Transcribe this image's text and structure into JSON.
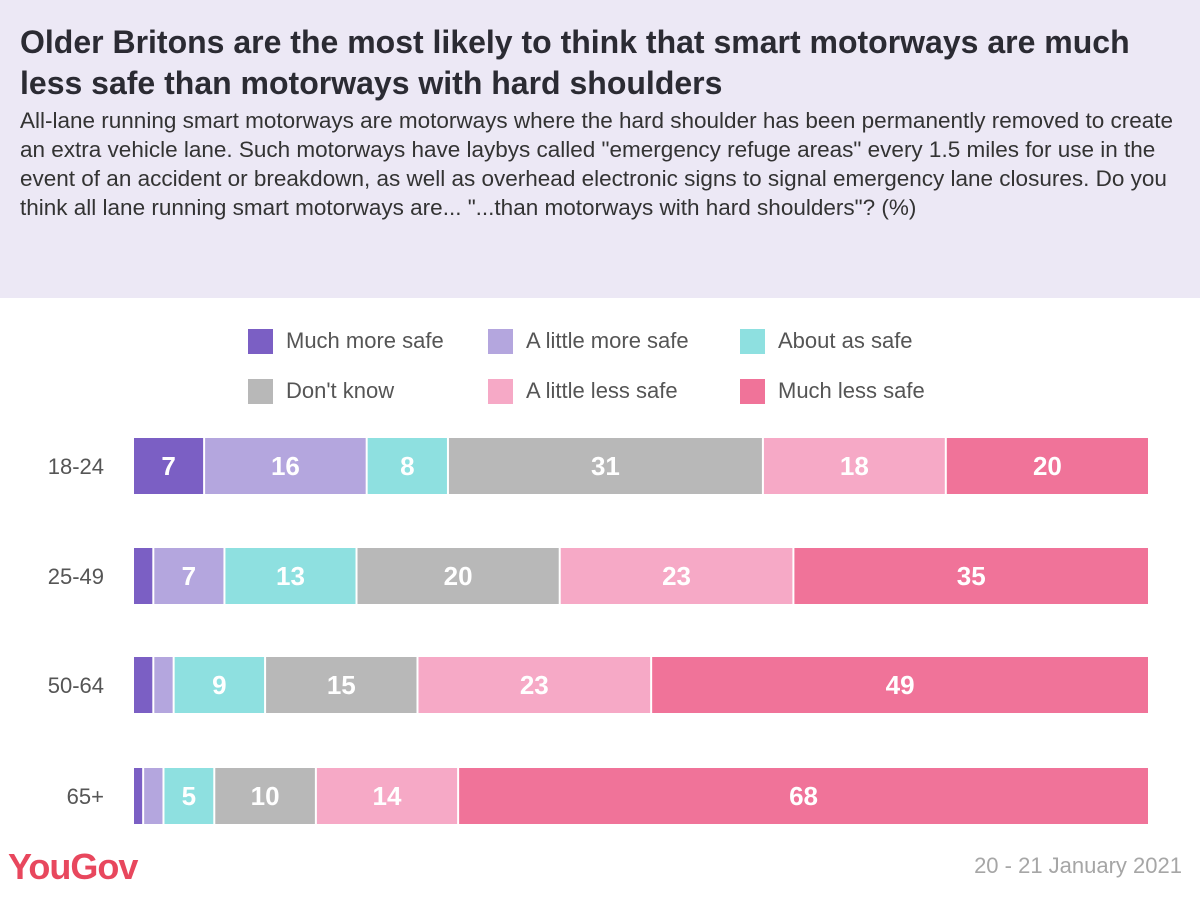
{
  "header": {
    "title": "Older Britons are the most likely to think that smart motorways are much less safe than motorways with hard shoulders",
    "subtitle": "All-lane running smart motorways are motorways where the hard shoulder has been permanently removed to create an extra vehicle lane. Such motorways have laybys called \"emergency refuge areas\" every 1.5 miles for use in the event of an accident or breakdown, as well as overhead electronic signs to signal emergency lane closures. Do you think all lane running smart motorways are... \"...than motorways with hard shoulders\"? (%)"
  },
  "legend": [
    {
      "label": "Much more safe",
      "color": "#7b5fc4"
    },
    {
      "label": "A little more safe",
      "color": "#b4a6de"
    },
    {
      "label": "About as safe",
      "color": "#8ee0e0"
    },
    {
      "label": "Don't know",
      "color": "#b8b8b8"
    },
    {
      "label": "A little less safe",
      "color": "#f6a9c6"
    },
    {
      "label": "Much less safe",
      "color": "#f07399"
    }
  ],
  "chart_data": {
    "type": "bar",
    "orientation": "horizontal",
    "stacked": true,
    "categories": [
      "18-24",
      "25-49",
      "50-64",
      "65+"
    ],
    "series": [
      {
        "name": "Much more safe",
        "values": [
          7,
          2,
          2,
          1
        ]
      },
      {
        "name": "A little more safe",
        "values": [
          16,
          7,
          2,
          2
        ]
      },
      {
        "name": "About as safe",
        "values": [
          8,
          13,
          9,
          5
        ]
      },
      {
        "name": "Don't know",
        "values": [
          31,
          20,
          15,
          10
        ]
      },
      {
        "name": "A little less safe",
        "values": [
          18,
          23,
          23,
          14
        ]
      },
      {
        "name": "Much less safe",
        "values": [
          20,
          35,
          49,
          68
        ]
      }
    ],
    "xlim": [
      0,
      100
    ],
    "label_threshold": 5,
    "value_suffix": ""
  },
  "footer": {
    "brand": "YouGov",
    "date": "20 - 21 January 2021"
  }
}
